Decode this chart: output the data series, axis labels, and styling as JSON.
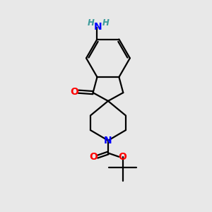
{
  "bg_color": "#e8e8e8",
  "bond_color": "#000000",
  "n_color": "#0000ff",
  "o_color": "#ff0000",
  "h_color": "#3d9b9b",
  "line_width": 1.6,
  "fig_width": 3.0,
  "fig_height": 3.0,
  "dpi": 100,
  "xlim": [
    0,
    10
  ],
  "ylim": [
    0,
    10
  ]
}
